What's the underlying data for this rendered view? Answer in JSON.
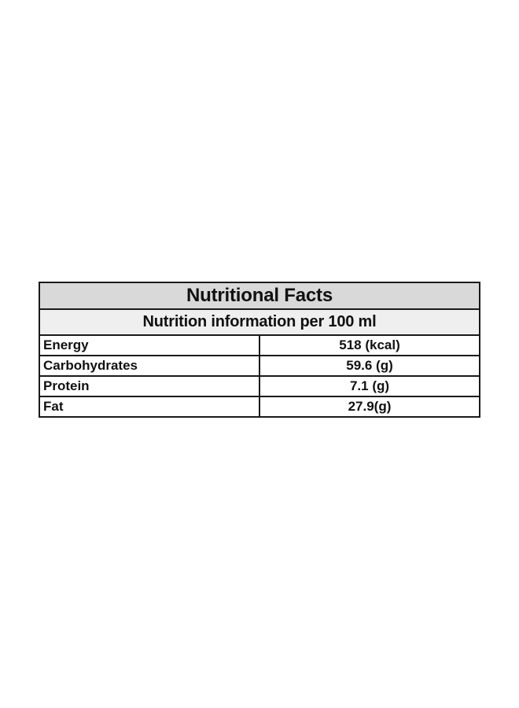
{
  "table": {
    "title": "Nutritional Facts",
    "subtitle": "Nutrition information per 100 ml",
    "rows": [
      {
        "label": "Energy",
        "value": "518 (kcal)"
      },
      {
        "label": "Carbohydrates",
        "value": "59.6 (g)"
      },
      {
        "label": "Protein",
        "value": "7.1 (g)"
      },
      {
        "label": "Fat",
        "value": "27.9(g)"
      }
    ],
    "colors": {
      "title_bg": "#d9d9d9",
      "subtitle_bg": "#efefef",
      "border": "#1a1a1a"
    }
  }
}
